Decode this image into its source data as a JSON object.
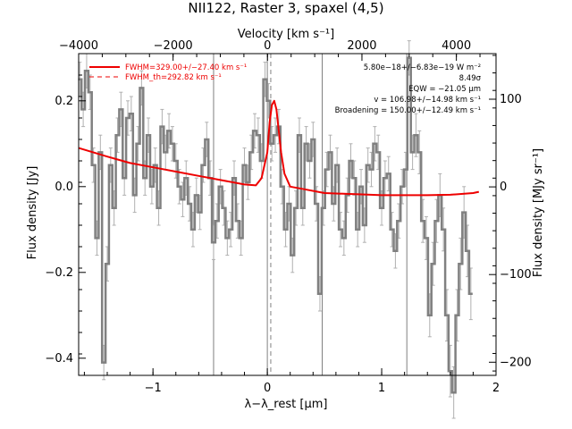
{
  "colors": {
    "background": "#ffffff",
    "axes": "#000000",
    "data": "#808080",
    "errorbar": "#b0b0b0",
    "fit": "#ee0000",
    "guide": "#808080"
  },
  "chart_data": {
    "type": "line",
    "title": "NII122, Raster 3, spaxel (4,5)",
    "xlabel": "λ−λ_rest [μm]",
    "ylabel": "Flux density [Jy]",
    "top_xlabel": "Velocity [km s⁻¹]",
    "right_ylabel": "Flux density [MJy sr⁻¹]",
    "xlim": [
      -1.65,
      2.0
    ],
    "ylim": [
      -0.44,
      0.31
    ],
    "top_xlim": [
      -4000,
      4840
    ],
    "right_ylim": [
      -215,
      152
    ],
    "x_ticks": [
      -1,
      0,
      1,
      2
    ],
    "y_ticks": [
      -0.4,
      -0.2,
      0.0,
      0.2
    ],
    "top_ticks": [
      -4000,
      -2000,
      0,
      2000,
      4000
    ],
    "right_ticks": [
      -200,
      -100,
      0,
      100
    ],
    "x_tick_labels": [
      "−1",
      "0",
      "1",
      "2"
    ],
    "y_tick_labels": [
      "−0.4",
      "−0.2",
      "0.0",
      "0.2"
    ],
    "top_tick_labels": [
      "−4000",
      "−2000",
      "0",
      "2000",
      "4000"
    ],
    "right_tick_labels": [
      "−200",
      "−100",
      "0",
      "100"
    ],
    "grid": false,
    "legend_position": "top-left",
    "vertical_lines": [
      -0.47,
      0.0,
      0.48,
      1.22
    ],
    "rest_line_dashed": 0.03,
    "series": [
      {
        "name": "spectrum",
        "style": "step",
        "x": [
          -1.64,
          -1.61,
          -1.58,
          -1.55,
          -1.52,
          -1.49,
          -1.46,
          -1.43,
          -1.4,
          -1.37,
          -1.34,
          -1.31,
          -1.28,
          -1.25,
          -1.22,
          -1.19,
          -1.16,
          -1.13,
          -1.1,
          -1.07,
          -1.04,
          -1.01,
          -0.98,
          -0.95,
          -0.92,
          -0.89,
          -0.86,
          -0.83,
          -0.8,
          -0.77,
          -0.74,
          -0.71,
          -0.68,
          -0.65,
          -0.62,
          -0.59,
          -0.56,
          -0.53,
          -0.5,
          -0.47,
          -0.44,
          -0.41,
          -0.38,
          -0.35,
          -0.32,
          -0.29,
          -0.26,
          -0.23,
          -0.2,
          -0.17,
          -0.14,
          -0.11,
          -0.08,
          -0.05,
          -0.02,
          0.01,
          0.04,
          0.07,
          0.1,
          0.13,
          0.16,
          0.19,
          0.22,
          0.25,
          0.28,
          0.31,
          0.34,
          0.37,
          0.4,
          0.43,
          0.46,
          0.49,
          0.52,
          0.55,
          0.58,
          0.61,
          0.64,
          0.67,
          0.7,
          0.73,
          0.76,
          0.79,
          0.82,
          0.85,
          0.88,
          0.91,
          0.94,
          0.97,
          1.0,
          1.03,
          1.06,
          1.09,
          1.12,
          1.15,
          1.18,
          1.21,
          1.24,
          1.27,
          1.3,
          1.33,
          1.36,
          1.39,
          1.42,
          1.45,
          1.48,
          1.51,
          1.54,
          1.57,
          1.6,
          1.63,
          1.66,
          1.69,
          1.72,
          1.75,
          1.78
        ],
        "y": [
          0.25,
          0.18,
          0.27,
          0.22,
          0.05,
          -0.12,
          0.08,
          -0.41,
          -0.18,
          0.05,
          -0.05,
          0.12,
          0.18,
          0.02,
          0.16,
          0.17,
          -0.02,
          0.1,
          0.23,
          0.02,
          0.12,
          0.0,
          0.05,
          -0.05,
          0.14,
          0.08,
          0.13,
          0.1,
          0.06,
          0.0,
          -0.03,
          0.02,
          -0.04,
          -0.1,
          -0.02,
          -0.06,
          0.05,
          0.11,
          0.02,
          -0.13,
          -0.08,
          0.0,
          -0.05,
          -0.12,
          -0.1,
          0.02,
          -0.08,
          -0.12,
          0.05,
          0.01,
          0.08,
          0.13,
          0.12,
          0.06,
          0.25,
          0.2,
          0.1,
          0.12,
          0.14,
          0.0,
          -0.1,
          -0.04,
          -0.16,
          -0.05,
          0.12,
          -0.05,
          0.1,
          0.06,
          0.11,
          -0.04,
          -0.25,
          -0.05,
          0.04,
          0.08,
          -0.04,
          0.05,
          -0.1,
          -0.12,
          -0.02,
          0.06,
          0.02,
          -0.1,
          0.0,
          -0.09,
          0.05,
          0.04,
          0.1,
          0.08,
          -0.05,
          0.02,
          0.03,
          -0.1,
          -0.15,
          -0.08,
          0.0,
          0.04,
          0.3,
          0.08,
          0.12,
          0.08,
          -0.08,
          -0.12,
          -0.3,
          -0.18,
          -0.08,
          -0.02,
          -0.1,
          -0.3,
          -0.43,
          -0.48,
          -0.3,
          -0.18,
          -0.06,
          -0.15,
          -0.25
        ],
        "errors": [
          0.04,
          0.04,
          0.04,
          0.04,
          0.04,
          0.04,
          0.04,
          0.04,
          0.04,
          0.04,
          0.04,
          0.04,
          0.04,
          0.04,
          0.04,
          0.04,
          0.04,
          0.04,
          0.04,
          0.04,
          0.04,
          0.04,
          0.04,
          0.04,
          0.04,
          0.04,
          0.04,
          0.04,
          0.04,
          0.04,
          0.04,
          0.04,
          0.04,
          0.04,
          0.04,
          0.04,
          0.04,
          0.04,
          0.04,
          0.04,
          0.04,
          0.04,
          0.04,
          0.04,
          0.04,
          0.04,
          0.04,
          0.04,
          0.04,
          0.04,
          0.04,
          0.04,
          0.04,
          0.04,
          0.04,
          0.04,
          0.04,
          0.04,
          0.04,
          0.04,
          0.04,
          0.04,
          0.04,
          0.04,
          0.04,
          0.04,
          0.04,
          0.04,
          0.04,
          0.04,
          0.04,
          0.04,
          0.04,
          0.04,
          0.04,
          0.04,
          0.04,
          0.04,
          0.04,
          0.04,
          0.04,
          0.04,
          0.04,
          0.04,
          0.04,
          0.04,
          0.04,
          0.04,
          0.04,
          0.04,
          0.04,
          0.04,
          0.04,
          0.04,
          0.04,
          0.04,
          0.04,
          0.04,
          0.05,
          0.05,
          0.05,
          0.05,
          0.05,
          0.05,
          0.05,
          0.05,
          0.05,
          0.06,
          0.06,
          0.06,
          0.06,
          0.06,
          0.06,
          0.06,
          0.06
        ]
      },
      {
        "name": "FWHM=329.00+/−27.40 km s⁻¹",
        "style": "smooth",
        "x": [
          -1.65,
          -1.4,
          -1.2,
          -1.0,
          -0.8,
          -0.6,
          -0.4,
          -0.2,
          -0.1,
          -0.05,
          0.0,
          0.02,
          0.04,
          0.06,
          0.08,
          0.1,
          0.12,
          0.15,
          0.2,
          0.3,
          0.5,
          0.8,
          1.0,
          1.2,
          1.4,
          1.6,
          1.8,
          1.85
        ],
        "y": [
          0.09,
          0.07,
          0.055,
          0.045,
          0.035,
          0.025,
          0.015,
          0.005,
          0.003,
          0.02,
          0.08,
          0.15,
          0.19,
          0.2,
          0.18,
          0.13,
          0.08,
          0.03,
          0.0,
          -0.005,
          -0.015,
          -0.018,
          -0.02,
          -0.02,
          -0.02,
          -0.019,
          -0.015,
          -0.012
        ]
      }
    ],
    "legend": [
      {
        "label": "FWHM=329.00+/−27.40 km s⁻¹",
        "style": "solid"
      },
      {
        "label": "FWHM_th=292.82 km s⁻¹",
        "style": "dashed"
      }
    ],
    "annotations": [
      "5.80e−18+/−6.83e−19 W m⁻²",
      "8.49σ",
      "EQW = −21.05 μm",
      "v = 106.98+/−14.98 km s⁻¹",
      "Broadening = 150.00+/−12.49 km s⁻¹"
    ]
  }
}
